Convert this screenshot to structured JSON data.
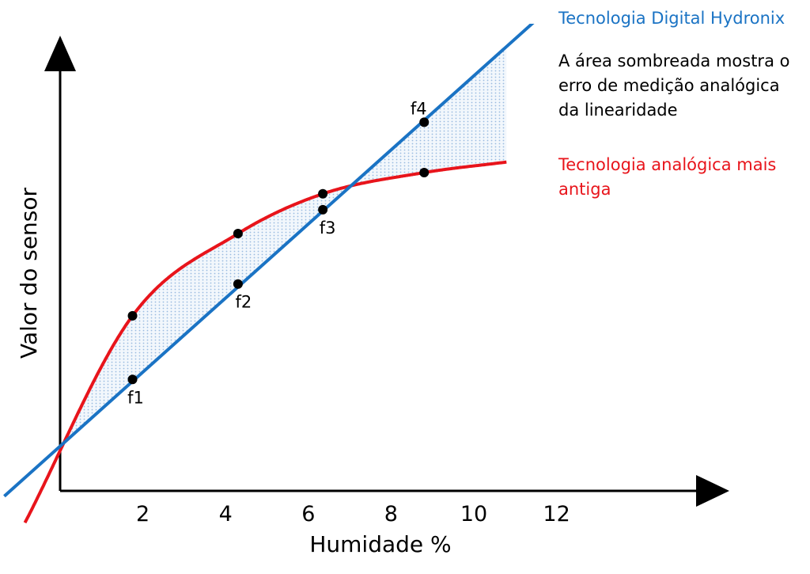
{
  "chart_data": {
    "type": "line",
    "xlabel": "Humidade %",
    "ylabel": "Valor do sensor",
    "x_ticks": [
      2,
      4,
      6,
      8,
      10,
      12
    ],
    "xlim": [
      0,
      16
    ],
    "ylim": [
      -0.6,
      10.5
    ],
    "grid": false,
    "series": [
      {
        "name": "Tecnologia Digital Hydronix",
        "color": "#1a73c4",
        "x": [
          -1.35,
          1.75,
          4.3,
          6.35,
          8.8,
          11.9
        ],
        "y": [
          -0.1,
          2.1,
          3.9,
          5.3,
          6.95,
          9.15
        ]
      },
      {
        "name": "Tecnologia analógica mais antiga",
        "color": "#e8141b",
        "x": [
          -0.85,
          1.75,
          4.3,
          6.35,
          8.8,
          10.8
        ],
        "y": [
          -0.6,
          3.3,
          4.85,
          5.6,
          6.0,
          6.2
        ]
      }
    ],
    "points": [
      {
        "label": "f1",
        "x": 1.75,
        "y": 2.1
      },
      {
        "label": "f2",
        "x": 4.3,
        "y": 3.9
      },
      {
        "label": "f3",
        "x": 6.35,
        "y": 5.3
      },
      {
        "label": "f4",
        "x": 8.8,
        "y": 6.95
      }
    ],
    "analog_points": [
      {
        "x": 1.75,
        "y": 3.3
      },
      {
        "x": 4.3,
        "y": 4.85
      },
      {
        "x": 6.35,
        "y": 5.6
      },
      {
        "x": 8.8,
        "y": 6.0
      }
    ],
    "shaded_area_color": "#a9c7e6",
    "annotations": {
      "digital": "Tecnologia Digital Hydronix",
      "shaded": "A área sombreada mostra o erro de medição analógica da linearidade",
      "analog": "Tecnologia analógica mais antiga"
    }
  }
}
